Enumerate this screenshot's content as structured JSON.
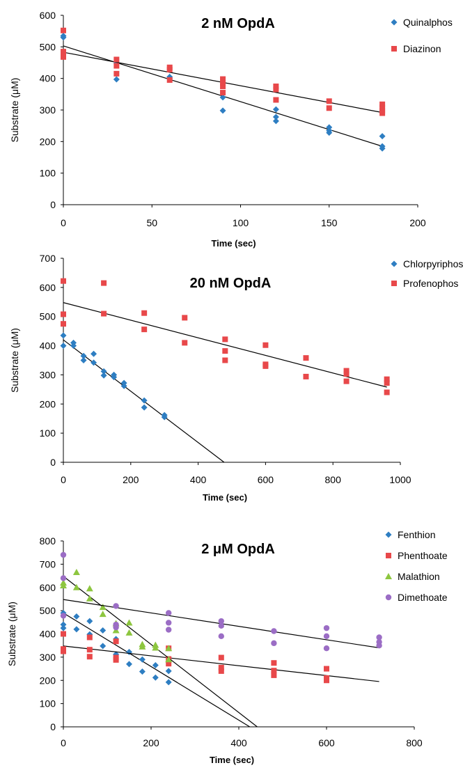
{
  "chart_data": [
    {
      "type": "scatter",
      "title": "2 nM OpdA",
      "xlabel": "Time (sec)",
      "ylabel": "Substrate (μM)",
      "xlim": [
        0,
        200
      ],
      "ylim": [
        0,
        600
      ],
      "xticks": [
        0,
        50,
        100,
        150,
        200
      ],
      "yticks": [
        0,
        100,
        200,
        300,
        400,
        500,
        600
      ],
      "legend_position": "top-right",
      "series": [
        {
          "name": "Quinalphos",
          "color": "#2e7ec2",
          "marker": "diamond",
          "x": [
            0,
            0,
            30,
            30,
            60,
            60,
            90,
            90,
            120,
            120,
            120,
            150,
            150,
            150,
            180,
            180,
            180
          ],
          "y": [
            535,
            530,
            448,
            397,
            405,
            400,
            340,
            298,
            302,
            278,
            265,
            245,
            235,
            228,
            217,
            185,
            178
          ],
          "trend": [
            [
              0,
              503
            ],
            [
              180,
              185
            ]
          ]
        },
        {
          "name": "Diazinon",
          "color": "#e8484a",
          "marker": "square",
          "x": [
            0,
            0,
            0,
            0,
            30,
            30,
            30,
            60,
            60,
            60,
            90,
            90,
            90,
            90,
            120,
            120,
            120,
            150,
            150,
            180,
            180,
            180,
            180
          ],
          "y": [
            552,
            485,
            478,
            468,
            460,
            440,
            415,
            435,
            428,
            395,
            398,
            385,
            375,
            355,
            375,
            365,
            332,
            328,
            306,
            318,
            308,
            298,
            290
          ],
          "trend": [
            [
              0,
              483
            ],
            [
              180,
              292
            ]
          ]
        }
      ]
    },
    {
      "type": "scatter",
      "title": "20 nM OpdA",
      "xlabel": "Time (sec)",
      "ylabel": "Substrate (μM)",
      "xlim": [
        0,
        1000
      ],
      "ylim": [
        0,
        700
      ],
      "xticks": [
        0,
        200,
        400,
        600,
        800,
        1000
      ],
      "yticks": [
        0,
        100,
        200,
        300,
        400,
        500,
        600,
        700
      ],
      "legend_position": "top-right",
      "series": [
        {
          "name": "Chlorpyriphos",
          "color": "#2e7ec2",
          "marker": "diamond",
          "x": [
            0,
            0,
            30,
            30,
            60,
            60,
            90,
            90,
            120,
            120,
            150,
            150,
            180,
            180,
            240,
            240,
            300,
            300
          ],
          "y": [
            435,
            400,
            410,
            400,
            365,
            350,
            372,
            342,
            312,
            298,
            300,
            292,
            272,
            262,
            212,
            188,
            162,
            155
          ],
          "trend": [
            [
              0,
              420
            ],
            [
              477,
              0
            ]
          ]
        },
        {
          "name": "Profenophos",
          "color": "#e8484a",
          "marker": "square",
          "x": [
            0,
            0,
            0,
            120,
            120,
            240,
            240,
            360,
            360,
            480,
            480,
            480,
            600,
            600,
            600,
            720,
            720,
            840,
            840,
            840,
            960,
            960,
            960
          ],
          "y": [
            622,
            508,
            475,
            615,
            510,
            512,
            456,
            496,
            410,
            422,
            382,
            350,
            402,
            336,
            330,
            358,
            294,
            314,
            303,
            278,
            285,
            272,
            240
          ],
          "trend": [
            [
              0,
              548
            ],
            [
              960,
              258
            ]
          ]
        }
      ]
    },
    {
      "type": "scatter",
      "title": "2 μM OpdA",
      "xlabel": "Time (sec)",
      "ylabel": "Substrate (μM)",
      "xlim": [
        0,
        800
      ],
      "ylim": [
        0,
        800
      ],
      "xticks": [
        0,
        200,
        400,
        600,
        800
      ],
      "yticks": [
        0,
        100,
        200,
        300,
        400,
        500,
        600,
        700,
        800
      ],
      "legend_position": "top-right",
      "series": [
        {
          "name": "Fenthion",
          "color": "#2e7ec2",
          "marker": "diamond",
          "x": [
            0,
            0,
            0,
            30,
            30,
            60,
            60,
            90,
            90,
            120,
            120,
            150,
            150,
            180,
            180,
            210,
            210,
            240,
            240
          ],
          "y": [
            490,
            440,
            425,
            475,
            420,
            455,
            398,
            415,
            348,
            378,
            312,
            322,
            270,
            290,
            238,
            265,
            212,
            240,
            192
          ],
          "trend": [
            [
              0,
              490
            ],
            [
              425,
              0
            ]
          ]
        },
        {
          "name": "Phenthoate",
          "color": "#e8484a",
          "marker": "square",
          "x": [
            0,
            0,
            0,
            60,
            60,
            60,
            120,
            120,
            120,
            240,
            240,
            240,
            360,
            360,
            360,
            480,
            480,
            480,
            600,
            600,
            600
          ],
          "y": [
            400,
            335,
            325,
            385,
            332,
            302,
            368,
            298,
            288,
            338,
            292,
            272,
            298,
            255,
            240,
            275,
            242,
            222,
            250,
            210,
            200
          ],
          "trend": [
            [
              0,
              348
            ],
            [
              720,
              195
            ]
          ]
        },
        {
          "name": "Malathion",
          "color": "#8dc63f",
          "marker": "triangle",
          "x": [
            0,
            0,
            30,
            30,
            60,
            60,
            90,
            90,
            120,
            120,
            150,
            150,
            180,
            180,
            210,
            210,
            240,
            240
          ],
          "y": [
            620,
            608,
            665,
            600,
            595,
            552,
            515,
            485,
            445,
            415,
            448,
            405,
            355,
            345,
            352,
            340,
            338,
            290
          ],
          "trend": [
            [
              0,
              648
            ],
            [
              442,
              0
            ]
          ]
        },
        {
          "name": "Dimethoate",
          "color": "#9b6dc5",
          "marker": "circle",
          "x": [
            0,
            0,
            0,
            120,
            120,
            120,
            240,
            240,
            240,
            360,
            360,
            360,
            480,
            480,
            600,
            600,
            600,
            720,
            720,
            720
          ],
          "y": [
            740,
            640,
            478,
            520,
            440,
            428,
            490,
            448,
            418,
            455,
            435,
            390,
            412,
            360,
            425,
            390,
            338,
            385,
            365,
            350
          ],
          "trend": [
            [
              0,
              548
            ],
            [
              720,
              340
            ]
          ]
        }
      ]
    }
  ]
}
